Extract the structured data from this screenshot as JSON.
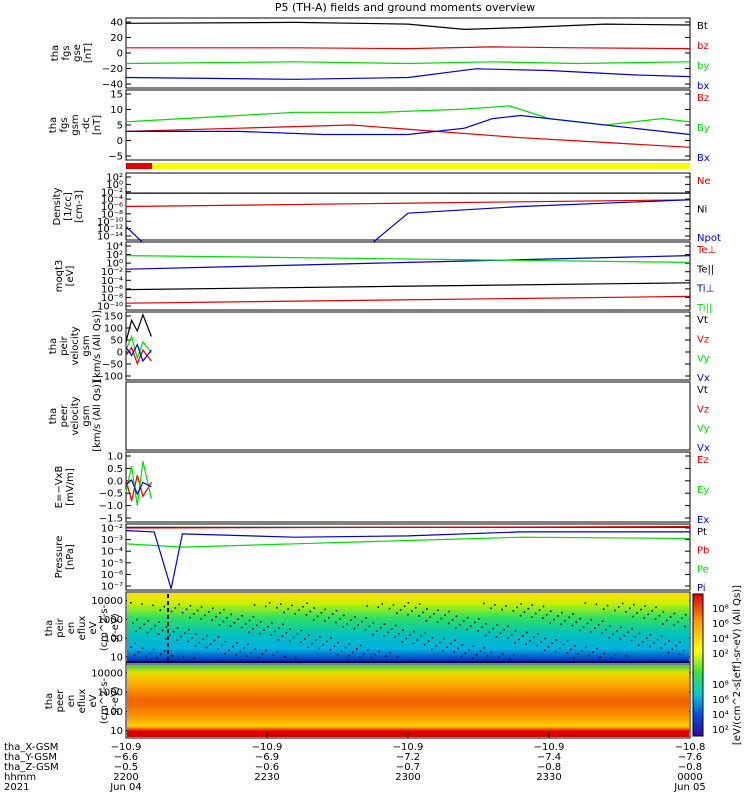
{
  "title": "P5 (TH-A) fields and ground moments overview",
  "colors": {
    "black": "#000000",
    "red": "#e00000",
    "green": "#00dd00",
    "blue": "#0000c8",
    "yellow": "#ffff00"
  },
  "chart_data": [
    {
      "type": "line",
      "ylabel": [
        "tha",
        "fgs",
        "gse",
        "[nT]"
      ],
      "ylim": [
        -40,
        40
      ],
      "yticks": [
        "40",
        "20",
        "0",
        "−20",
        "−40"
      ],
      "series": [
        {
          "name": "Bt",
          "color": "black",
          "points": [
            [
              0,
              34
            ],
            [
              0.3,
              35
            ],
            [
              0.5,
              33
            ],
            [
              0.6,
              27
            ],
            [
              0.7,
              29
            ],
            [
              0.85,
              33
            ],
            [
              1,
              32
            ]
          ]
        },
        {
          "name": "bz",
          "color": "red",
          "points": [
            [
              0,
              6
            ],
            [
              0.3,
              6
            ],
            [
              0.5,
              5
            ],
            [
              0.65,
              7
            ],
            [
              0.8,
              6
            ],
            [
              1,
              5
            ]
          ]
        },
        {
          "name": "by",
          "color": "green",
          "points": [
            [
              0,
              -12
            ],
            [
              0.3,
              -10
            ],
            [
              0.5,
              -12
            ],
            [
              0.65,
              -10
            ],
            [
              0.8,
              -12
            ],
            [
              1,
              -10
            ]
          ]
        },
        {
          "name": "bx",
          "color": "blue",
          "points": [
            [
              0,
              -28
            ],
            [
              0.3,
              -30
            ],
            [
              0.5,
              -28
            ],
            [
              0.62,
              -18
            ],
            [
              0.75,
              -20
            ],
            [
              0.9,
              -25
            ],
            [
              1,
              -27
            ]
          ]
        }
      ]
    },
    {
      "type": "line",
      "ylabel": [
        "tha",
        "fgs",
        "gsm",
        "-dc",
        "[nT]"
      ],
      "ylim": [
        -7,
        15
      ],
      "yticks": [
        "15",
        "10",
        "5",
        "0",
        "−5"
      ],
      "series": [
        {
          "name": "Bz",
          "color": "red",
          "points": [
            [
              0,
              2
            ],
            [
              0.2,
              3
            ],
            [
              0.4,
              4
            ],
            [
              0.55,
              2
            ],
            [
              0.7,
              0
            ],
            [
              0.8,
              -1
            ],
            [
              0.9,
              -2
            ],
            [
              1,
              -3
            ]
          ]
        },
        {
          "name": "By",
          "color": "green",
          "points": [
            [
              0,
              5
            ],
            [
              0.1,
              6
            ],
            [
              0.2,
              7
            ],
            [
              0.3,
              8
            ],
            [
              0.45,
              8
            ],
            [
              0.6,
              9
            ],
            [
              0.68,
              10
            ],
            [
              0.75,
              6
            ],
            [
              0.85,
              4
            ],
            [
              0.95,
              6
            ],
            [
              1,
              5
            ]
          ]
        },
        {
          "name": "Bx",
          "color": "blue",
          "points": [
            [
              0,
              2
            ],
            [
              0.2,
              2
            ],
            [
              0.35,
              1
            ],
            [
              0.5,
              1
            ],
            [
              0.6,
              3
            ],
            [
              0.65,
              6
            ],
            [
              0.7,
              7
            ],
            [
              0.8,
              5
            ],
            [
              0.9,
              3
            ],
            [
              1,
              1
            ]
          ]
        }
      ]
    },
    {
      "type": "line",
      "log": true,
      "ylabel": [
        "Density",
        "[1/cc]",
        "[cm-3]"
      ],
      "yticks": [
        "10²",
        "10⁰",
        "10⁻²",
        "10⁻⁴",
        "10⁻⁶",
        "10⁻⁸",
        "10⁻¹⁰",
        "10⁻¹²",
        "10⁻¹⁴"
      ],
      "series": [
        {
          "name": "Ne",
          "color": "red",
          "points": [
            [
              0,
              0.5
            ],
            [
              1,
              0.4
            ]
          ]
        },
        {
          "name": "Ni",
          "color": "black",
          "points": [
            [
              0,
              0.3
            ],
            [
              1,
              0.3
            ]
          ]
        },
        {
          "name": "Npot",
          "color": "blue",
          "points": [
            [
              0,
              0.8
            ],
            [
              0.1,
              1.6
            ],
            [
              0.2,
              2
            ],
            [
              0.3,
              1.6
            ],
            [
              0.4,
              1.3
            ],
            [
              0.5,
              0.6
            ],
            [
              0.7,
              0.5
            ],
            [
              1,
              0.4
            ]
          ]
        }
      ]
    },
    {
      "type": "line",
      "log": true,
      "ylabel": [
        "moqt3",
        "[eV]"
      ],
      "yticks": [
        "10⁴",
        "10²",
        "10⁰",
        "10⁻²",
        "10⁻⁴",
        "10⁻⁶",
        "10⁻⁸",
        "10⁻¹⁰"
      ],
      "series": [
        {
          "name": "Te⊥",
          "color": "red",
          "points": [
            [
              0,
              0.9
            ],
            [
              1,
              0.8
            ]
          ]
        },
        {
          "name": "Te||",
          "color": "black",
          "points": [
            [
              0,
              0.7
            ],
            [
              1,
              0.6
            ]
          ]
        },
        {
          "name": "Ti⊥",
          "color": "blue",
          "points": [
            [
              0,
              0.4
            ],
            [
              0.5,
              0.3
            ],
            [
              1,
              0.2
            ]
          ]
        },
        {
          "name": "Ti||",
          "color": "green",
          "points": [
            [
              0,
              0.2
            ],
            [
              1,
              0.3
            ]
          ]
        }
      ]
    },
    {
      "type": "line",
      "ylabel": [
        "tha",
        "peir",
        "velocity",
        "gsm",
        "[km/s (All Qs)]"
      ],
      "ylim": [
        -100,
        150
      ],
      "yticks": [
        "150",
        "100",
        "50",
        "0",
        "−50",
        "−100"
      ],
      "series": [
        {
          "name": "Vt",
          "color": "black",
          "points": [
            [
              0,
              40
            ],
            [
              0.01,
              120
            ],
            [
              0.02,
              80
            ],
            [
              0.03,
              140
            ],
            [
              0.045,
              60
            ]
          ]
        },
        {
          "name": "Vz",
          "color": "red",
          "points": [
            [
              0,
              -10
            ],
            [
              0.01,
              20
            ],
            [
              0.02,
              -40
            ],
            [
              0.03,
              10
            ],
            [
              0.045,
              -30
            ]
          ]
        },
        {
          "name": "Vy",
          "color": "green",
          "points": [
            [
              0,
              10
            ],
            [
              0.01,
              60
            ],
            [
              0.02,
              -20
            ],
            [
              0.03,
              40
            ],
            [
              0.045,
              0
            ]
          ]
        },
        {
          "name": "Vx",
          "color": "blue",
          "points": [
            [
              0,
              20
            ],
            [
              0.01,
              -10
            ],
            [
              0.02,
              30
            ],
            [
              0.03,
              -30
            ],
            [
              0.045,
              10
            ]
          ]
        }
      ]
    },
    {
      "type": "line",
      "ylabel": [
        "tha",
        "peer",
        "velocity",
        "gsm",
        "[km/s (All Qs)]"
      ],
      "ylim": [
        0,
        1
      ],
      "yticks": [],
      "series": [
        {
          "name": "Vt",
          "color": "black",
          "points": []
        },
        {
          "name": "Vz",
          "color": "red",
          "points": []
        },
        {
          "name": "Vy",
          "color": "green",
          "points": []
        },
        {
          "name": "Vx",
          "color": "blue",
          "points": []
        }
      ]
    },
    {
      "type": "line",
      "ylabel": [
        "E=−VxB",
        "[mV/m]"
      ],
      "ylim": [
        -1.5,
        1.5
      ],
      "yticks": [
        "1.0",
        "0.5",
        "0.0",
        "−0.5",
        "−1.0",
        "−1.5"
      ],
      "series": [
        {
          "name": "Ez",
          "color": "red",
          "points": [
            [
              0,
              0.3
            ],
            [
              0.01,
              -0.6
            ],
            [
              0.02,
              0.5
            ],
            [
              0.03,
              -0.4
            ],
            [
              0.045,
              0.2
            ]
          ]
        },
        {
          "name": "Ey",
          "color": "green",
          "points": [
            [
              0,
              -0.2
            ],
            [
              0.01,
              0.9
            ],
            [
              0.02,
              -0.8
            ],
            [
              0.03,
              1.1
            ],
            [
              0.045,
              -0.5
            ]
          ]
        },
        {
          "name": "Ex",
          "color": "blue",
          "points": [
            [
              0,
              0.1
            ],
            [
              0.01,
              0.3
            ],
            [
              0.02,
              -0.3
            ],
            [
              0.03,
              0.2
            ],
            [
              0.045,
              0
            ]
          ]
        }
      ]
    },
    {
      "type": "line",
      "log": true,
      "ylabel": [
        "Pressure",
        "[nPa]"
      ],
      "yticks": [
        "10⁻²",
        "10⁻³",
        "10⁻⁴",
        "10⁻⁵",
        "10⁻⁶",
        "10⁻⁷"
      ],
      "series": [
        {
          "name": "Pt",
          "color": "black",
          "points": [
            [
              0,
              0.05
            ],
            [
              1,
              0.05
            ]
          ]
        },
        {
          "name": "Pb",
          "color": "red",
          "points": [
            [
              0,
              0.06
            ],
            [
              1,
              0.04
            ]
          ]
        },
        {
          "name": "Pe",
          "color": "green",
          "points": [
            [
              0,
              0.3
            ],
            [
              0.1,
              0.35
            ],
            [
              0.3,
              0.3
            ],
            [
              0.5,
              0.25
            ],
            [
              0.7,
              0.2
            ],
            [
              1,
              0.22
            ]
          ]
        },
        {
          "name": "Pi",
          "color": "blue",
          "points": [
            [
              0,
              0.1
            ],
            [
              0.05,
              0.12
            ],
            [
              0.08,
              0.98
            ],
            [
              0.1,
              0.15
            ],
            [
              0.3,
              0.2
            ],
            [
              0.5,
              0.18
            ],
            [
              0.7,
              0.12
            ],
            [
              1,
              0.12
            ]
          ]
        }
      ]
    },
    {
      "type": "heatmap",
      "ylabel": [
        "tha",
        "peir",
        "en",
        "eflux",
        "eV",
        "(cm^2-s-",
        "sr-eV)"
      ],
      "yticks": [
        "10000",
        "1000",
        "100",
        "10"
      ]
    },
    {
      "type": "heatmap",
      "ylabel": [
        "tha",
        "peer",
        "en",
        "eflux",
        "eV",
        "(cm^2-s-",
        "sr-eV)"
      ],
      "yticks": [
        "10000",
        "1000",
        "100",
        "10"
      ]
    }
  ],
  "colorbar": {
    "label": "[eV/(cm^2-s[eff]-sr-eV) (All Qs)]",
    "ticks_top": [
      "10⁸",
      "10⁶",
      "10⁴",
      "10²"
    ],
    "ticks_bottom": [
      "10⁸",
      "10⁶",
      "10⁴",
      "10²"
    ]
  },
  "xaxis": {
    "ticks": [
      {
        "frac": 0,
        "rows": [
          "−10.9",
          "−6.6",
          "−0.5",
          "2200",
          "Jun 04"
        ]
      },
      {
        "frac": 0.25,
        "rows": [
          "−10.9",
          "−6.9",
          "−0.6",
          "2230",
          ""
        ]
      },
      {
        "frac": 0.5,
        "rows": [
          "−10.9",
          "−7.2",
          "−0.7",
          "2300",
          ""
        ]
      },
      {
        "frac": 0.75,
        "rows": [
          "−10.9",
          "−7.4",
          "−0.8",
          "2330",
          ""
        ]
      },
      {
        "frac": 1,
        "rows": [
          "−10.8",
          "−7.6",
          "−0.8",
          "0000",
          "Jun 05"
        ]
      }
    ],
    "row_labels": [
      "tha_X-GSM",
      "tha_Y-GSM",
      "tha_Z-GSM",
      "hhmm",
      "2021"
    ]
  }
}
